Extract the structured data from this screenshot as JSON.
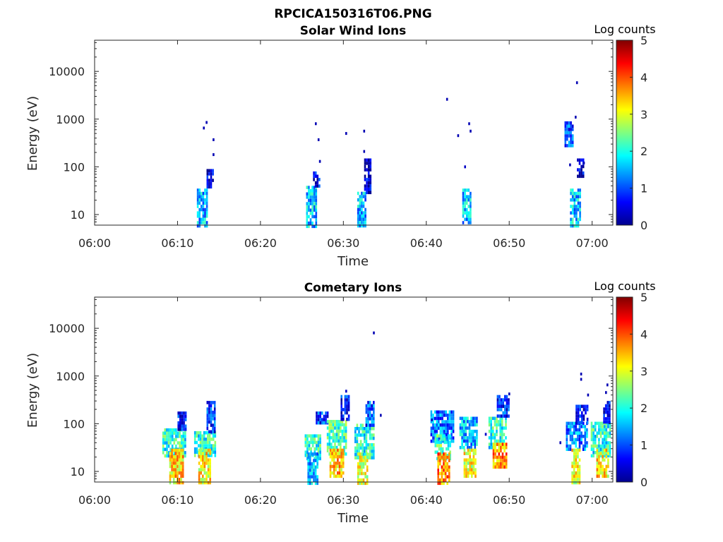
{
  "figure": {
    "title": "RPCICA150316T06.PNG"
  },
  "chart_data": [
    {
      "type": "heatmap",
      "title": "Solar Wind Ions",
      "xlabel": "Time",
      "ylabel": "Energy (eV)",
      "x_ticks": [
        "06:00",
        "06:10",
        "06:20",
        "06:30",
        "06:40",
        "06:50",
        "07:00"
      ],
      "x_range": [
        "06:00",
        "07:02:30"
      ],
      "y_scale": "log",
      "y_ticks": [
        10,
        100,
        1000,
        10000
      ],
      "y_range": [
        6,
        45000
      ],
      "colorbar": {
        "label": "Log counts",
        "ticks": [
          0,
          1,
          2,
          3,
          4,
          5
        ],
        "range": [
          0,
          5
        ]
      },
      "blocks": [
        {
          "start": "06:12:20",
          "end": "06:13:30",
          "e_min": 6,
          "e_max": 35,
          "level": 1.5
        },
        {
          "start": "06:13:30",
          "end": "06:14:20",
          "e_min": 40,
          "e_max": 90,
          "level": 0.3
        },
        {
          "start": "06:25:30",
          "end": "06:26:40",
          "e_min": 6,
          "e_max": 40,
          "level": 1.6
        },
        {
          "start": "06:26:20",
          "end": "06:27:00",
          "e_min": 40,
          "e_max": 80,
          "level": 0.5
        },
        {
          "start": "06:31:40",
          "end": "06:32:40",
          "e_min": 6,
          "e_max": 30,
          "level": 1.5
        },
        {
          "start": "06:32:30",
          "end": "06:33:20",
          "e_min": 30,
          "e_max": 150,
          "level": 0.4
        },
        {
          "start": "06:44:20",
          "end": "06:45:20",
          "e_min": 7,
          "e_max": 35,
          "level": 1.6
        },
        {
          "start": "06:57:20",
          "end": "06:58:30",
          "e_min": 6,
          "e_max": 35,
          "level": 1.6
        },
        {
          "start": "06:56:40",
          "end": "06:57:40",
          "e_min": 300,
          "e_max": 900,
          "level": 1.0
        },
        {
          "start": "06:58:10",
          "end": "06:58:50",
          "e_min": 60,
          "e_max": 150,
          "level": 0.3
        }
      ],
      "points": [
        {
          "t": "06:13:30",
          "e": 850,
          "level": 0.2
        },
        {
          "t": "06:13:10",
          "e": 650,
          "level": 0.2
        },
        {
          "t": "06:14:20",
          "e": 370,
          "level": 0.2
        },
        {
          "t": "06:14:20",
          "e": 180,
          "level": 0.2
        },
        {
          "t": "06:26:40",
          "e": 800,
          "level": 0.2
        },
        {
          "t": "06:27:00",
          "e": 370,
          "level": 0.2
        },
        {
          "t": "06:27:10",
          "e": 130,
          "level": 0.2
        },
        {
          "t": "06:30:20",
          "e": 500,
          "level": 0.2
        },
        {
          "t": "06:32:30",
          "e": 560,
          "level": 0.2
        },
        {
          "t": "06:32:30",
          "e": 210,
          "level": 0.2
        },
        {
          "t": "06:42:30",
          "e": 2600,
          "level": 0.2
        },
        {
          "t": "06:43:50",
          "e": 450,
          "level": 0.2
        },
        {
          "t": "06:45:10",
          "e": 800,
          "level": 0.2
        },
        {
          "t": "06:45:20",
          "e": 560,
          "level": 0.2
        },
        {
          "t": "06:44:40",
          "e": 100,
          "level": 0.3
        },
        {
          "t": "06:58:10",
          "e": 5800,
          "level": 0.2
        },
        {
          "t": "06:58:00",
          "e": 1100,
          "level": 0.2
        },
        {
          "t": "06:57:20",
          "e": 110,
          "level": 0.2
        },
        {
          "t": "06:59:00",
          "e": 120,
          "level": 0.2
        },
        {
          "t": "06:57:10",
          "e": 520,
          "level": 1.5
        }
      ]
    },
    {
      "type": "heatmap",
      "title": "Cometary Ions",
      "xlabel": "Time",
      "ylabel": "Energy (eV)",
      "x_ticks": [
        "06:00",
        "06:10",
        "06:20",
        "06:30",
        "06:40",
        "06:50",
        "07:00"
      ],
      "x_range": [
        "06:00",
        "07:02:30"
      ],
      "y_scale": "log",
      "y_ticks": [
        10,
        100,
        1000,
        10000
      ],
      "y_range": [
        6,
        45000
      ],
      "colorbar": {
        "label": "Log counts",
        "ticks": [
          0,
          1,
          2,
          3,
          4,
          5
        ],
        "range": [
          0,
          5
        ]
      },
      "blocks": [
        {
          "start": "06:08:10",
          "end": "06:11:00",
          "e_min": 20,
          "e_max": 80,
          "level": 2.0
        },
        {
          "start": "06:09:00",
          "end": "06:10:40",
          "e_min": 6,
          "e_max": 30,
          "level": 3.3
        },
        {
          "start": "06:10:00",
          "end": "06:11:00",
          "e_min": 80,
          "e_max": 180,
          "level": 0.8
        },
        {
          "start": "06:12:00",
          "end": "06:14:30",
          "e_min": 20,
          "e_max": 70,
          "level": 2.0
        },
        {
          "start": "06:12:30",
          "end": "06:14:00",
          "e_min": 6,
          "e_max": 30,
          "level": 3.2
        },
        {
          "start": "06:13:30",
          "end": "06:14:30",
          "e_min": 70,
          "e_max": 300,
          "level": 0.8
        },
        {
          "start": "06:25:20",
          "end": "06:27:10",
          "e_min": 20,
          "e_max": 60,
          "level": 2.0
        },
        {
          "start": "06:25:40",
          "end": "06:26:50",
          "e_min": 6,
          "e_max": 25,
          "level": 1.5
        },
        {
          "start": "06:26:40",
          "end": "06:28:00",
          "e_min": 100,
          "e_max": 180,
          "level": 0.9
        },
        {
          "start": "06:28:00",
          "end": "06:30:20",
          "e_min": 25,
          "e_max": 120,
          "level": 2.2
        },
        {
          "start": "06:28:20",
          "end": "06:30:00",
          "e_min": 8,
          "e_max": 30,
          "level": 3.4
        },
        {
          "start": "06:29:40",
          "end": "06:30:40",
          "e_min": 120,
          "e_max": 400,
          "level": 0.6
        },
        {
          "start": "06:31:20",
          "end": "06:33:40",
          "e_min": 20,
          "e_max": 100,
          "level": 2.0
        },
        {
          "start": "06:31:40",
          "end": "06:32:50",
          "e_min": 6,
          "e_max": 25,
          "level": 3.0
        },
        {
          "start": "06:32:40",
          "end": "06:33:40",
          "e_min": 100,
          "e_max": 300,
          "level": 1.0
        },
        {
          "start": "06:40:30",
          "end": "06:43:20",
          "e_min": 40,
          "e_max": 190,
          "level": 1.2
        },
        {
          "start": "06:41:00",
          "end": "06:42:50",
          "e_min": 20,
          "e_max": 60,
          "level": 2.3
        },
        {
          "start": "06:41:20",
          "end": "06:42:40",
          "e_min": 6,
          "e_max": 25,
          "level": 3.7
        },
        {
          "start": "06:44:00",
          "end": "06:46:00",
          "e_min": 30,
          "e_max": 140,
          "level": 1.5
        },
        {
          "start": "06:44:30",
          "end": "06:46:00",
          "e_min": 8,
          "e_max": 30,
          "level": 3.0
        },
        {
          "start": "06:47:30",
          "end": "06:49:40",
          "e_min": 30,
          "e_max": 140,
          "level": 2.0
        },
        {
          "start": "06:48:00",
          "end": "06:49:40",
          "e_min": 12,
          "e_max": 40,
          "level": 3.6
        },
        {
          "start": "06:48:30",
          "end": "06:50:00",
          "e_min": 140,
          "e_max": 400,
          "level": 0.8
        },
        {
          "start": "06:56:50",
          "end": "06:59:20",
          "e_min": 30,
          "e_max": 110,
          "level": 1.3
        },
        {
          "start": "06:57:30",
          "end": "06:58:30",
          "e_min": 6,
          "e_max": 30,
          "level": 3.0
        },
        {
          "start": "06:58:00",
          "end": "06:59:20",
          "e_min": 110,
          "e_max": 250,
          "level": 0.6
        },
        {
          "start": "06:59:50",
          "end": "07:02:10",
          "e_min": 20,
          "e_max": 110,
          "level": 2.0
        },
        {
          "start": "07:00:30",
          "end": "07:02:00",
          "e_min": 8,
          "e_max": 30,
          "level": 3.2
        },
        {
          "start": "07:01:20",
          "end": "07:02:10",
          "e_min": 110,
          "e_max": 300,
          "level": 0.6
        }
      ],
      "points": [
        {
          "t": "06:33:40",
          "e": 8000,
          "level": 0.2
        },
        {
          "t": "06:30:20",
          "e": 480,
          "level": 0.3
        },
        {
          "t": "06:50:00",
          "e": 420,
          "level": 0.2
        },
        {
          "t": "06:58:40",
          "e": 1100,
          "level": 0.2
        },
        {
          "t": "06:58:40",
          "e": 850,
          "level": 0.2
        },
        {
          "t": "06:59:30",
          "e": 400,
          "level": 0.2
        },
        {
          "t": "07:01:50",
          "e": 650,
          "level": 0.2
        },
        {
          "t": "07:01:40",
          "e": 450,
          "level": 0.2
        },
        {
          "t": "06:56:10",
          "e": 40,
          "level": 0.2
        },
        {
          "t": "06:40:40",
          "e": 120,
          "level": 0.3
        },
        {
          "t": "06:47:10",
          "e": 60,
          "level": 0.3
        },
        {
          "t": "06:34:30",
          "e": 150,
          "level": 0.2
        }
      ]
    }
  ]
}
